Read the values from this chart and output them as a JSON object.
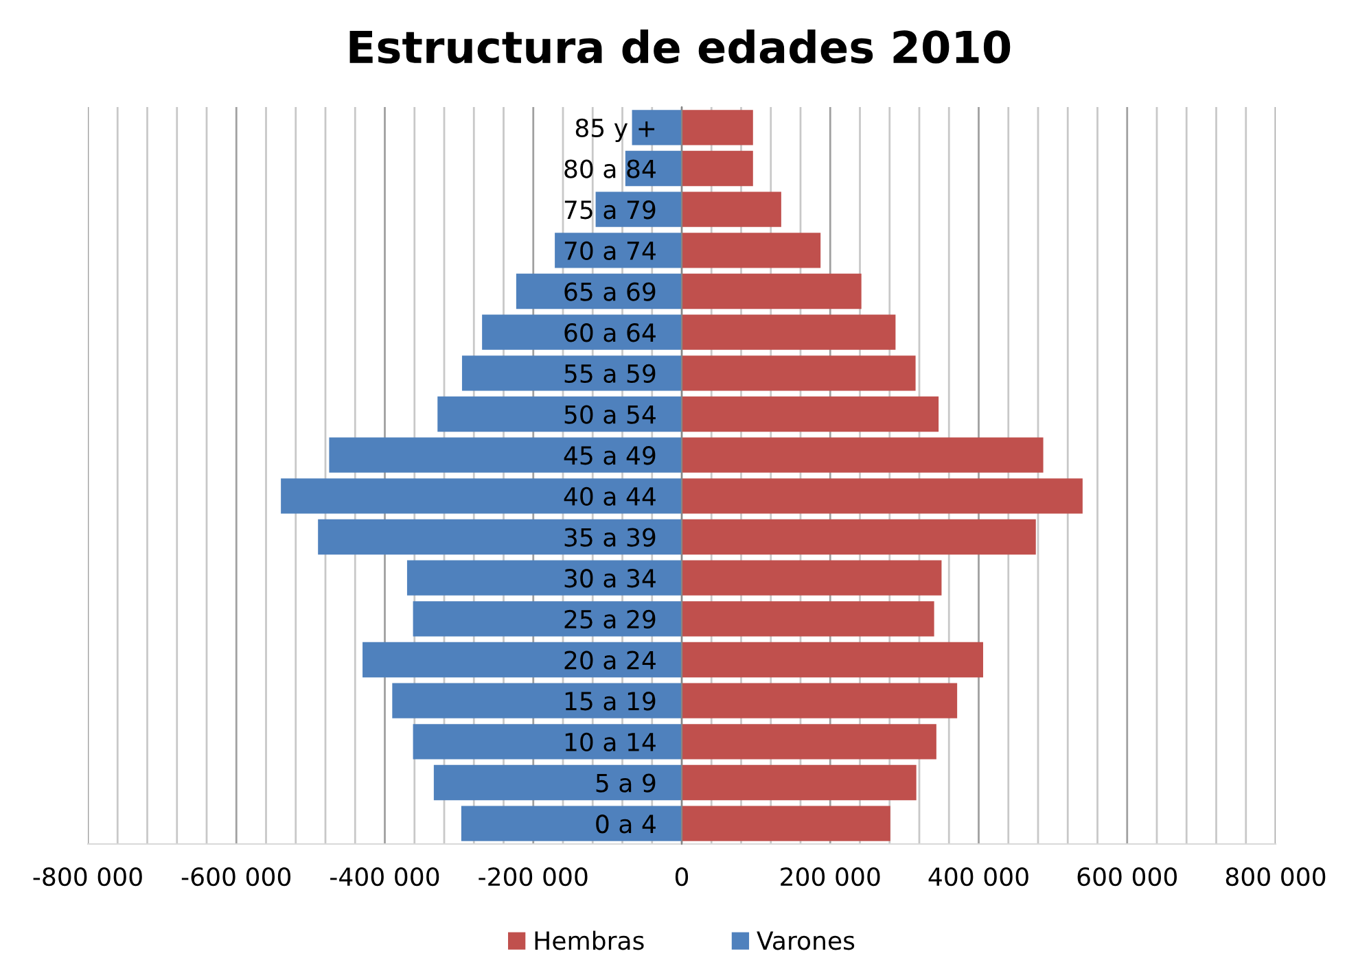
{
  "chart_data": {
    "type": "bar",
    "title": "Estructura de edades 2010",
    "orientation": "horizontal",
    "stacked": true,
    "categories": [
      "85 y +",
      "80 a 84",
      "75 a 79",
      "70 a 74",
      "65 a 69",
      "60 a 64",
      "55 a 59",
      "50 a 54",
      "45 a 49",
      "40 a 44",
      "35 a 39",
      "30 a 34",
      "25 a 29",
      "20 a 24",
      "15 a 19",
      "10 a 14",
      "5 a 9",
      "0 a 4"
    ],
    "series": [
      {
        "name": "Hembras",
        "color": "#c0504d",
        "values": [
          96000,
          96000,
          134000,
          187000,
          242000,
          288000,
          315000,
          346000,
          487000,
          540000,
          477000,
          350000,
          340000,
          406000,
          371000,
          343000,
          316000,
          281000
        ]
      },
      {
        "name": "Varones",
        "color": "#4f81bd",
        "values": [
          -67000,
          -76000,
          -116000,
          -171000,
          -223000,
          -269000,
          -296000,
          -329000,
          -475000,
          -540000,
          -490000,
          -370000,
          -362000,
          -430000,
          -390000,
          -362000,
          -334000,
          -297000
        ]
      }
    ],
    "xlim": [
      -800000,
      800000
    ],
    "xticks": [
      {
        "value": -800000,
        "label": "-800 000"
      },
      {
        "value": -760000,
        "label": null
      },
      {
        "value": -720000,
        "label": null
      },
      {
        "value": -680000,
        "label": null
      },
      {
        "value": -640000,
        "label": null
      },
      {
        "value": -600000,
        "label": "-600 000"
      },
      {
        "value": -560000,
        "label": null
      },
      {
        "value": -520000,
        "label": null
      },
      {
        "value": -480000,
        "label": null
      },
      {
        "value": -440000,
        "label": null
      },
      {
        "value": -400000,
        "label": "-400 000"
      },
      {
        "value": -360000,
        "label": null
      },
      {
        "value": -320000,
        "label": null
      },
      {
        "value": -280000,
        "label": null
      },
      {
        "value": -240000,
        "label": null
      },
      {
        "value": -200000,
        "label": "-200 000"
      },
      {
        "value": -160000,
        "label": null
      },
      {
        "value": -120000,
        "label": null
      },
      {
        "value": -80000,
        "label": null
      },
      {
        "value": -40000,
        "label": null
      },
      0,
      {
        "value": 40000,
        "label": null
      },
      {
        "value": 80000,
        "label": null
      },
      {
        "value": 120000,
        "label": null
      },
      {
        "value": 160000,
        "label": null
      },
      {
        "value": 200000,
        "label": "200 000"
      },
      {
        "value": 240000,
        "label": null
      },
      {
        "value": 280000,
        "label": null
      },
      {
        "value": 320000,
        "label": null
      },
      {
        "value": 360000,
        "label": null
      },
      {
        "value": 400000,
        "label": "400 000"
      },
      {
        "value": 440000,
        "label": null
      },
      {
        "value": 480000,
        "label": null
      },
      {
        "value": 520000,
        "label": null
      },
      {
        "value": 560000,
        "label": null
      },
      {
        "value": 600000,
        "label": "600 000"
      },
      {
        "value": 640000,
        "label": null
      },
      {
        "value": 680000,
        "label": null
      },
      {
        "value": 720000,
        "label": null
      },
      {
        "value": 760000,
        "label": null
      },
      {
        "value": 800000,
        "label": "800 000"
      }
    ],
    "grid": "x",
    "legend": "bottom"
  }
}
